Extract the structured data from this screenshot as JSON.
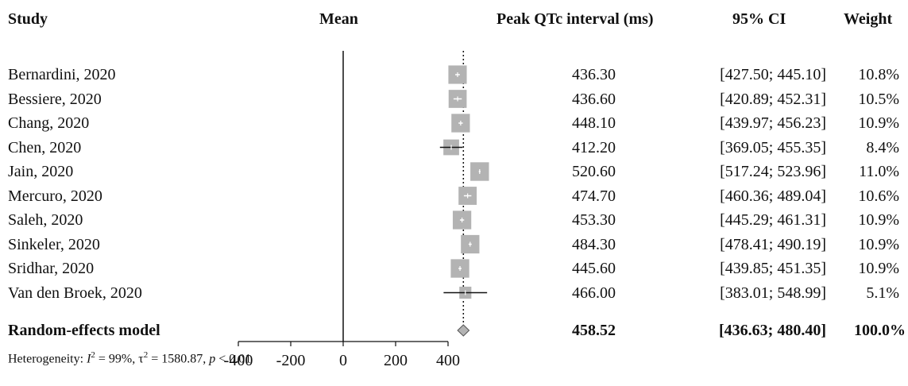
{
  "headers": {
    "study": "Study",
    "mean": "Mean",
    "value": "Peak QTc interval (ms)",
    "ci": "95% CI",
    "weight": "Weight"
  },
  "heterogeneity": {
    "prefix": "Heterogeneity: ",
    "i2_symbol": "I",
    "i2_sup": "2",
    "i2_value": " = 99%, ",
    "tau_symbol": "τ",
    "tau_sup": "2",
    "tau_value": " = 1580.87, ",
    "p_symbol": "p",
    "p_value": " < 0.01"
  },
  "chart_data": {
    "type": "forest",
    "title": "",
    "xlabel": "",
    "xlim": [
      -400,
      500
    ],
    "xticks": [
      -400,
      -200,
      0,
      200,
      400
    ],
    "xtick_labels": [
      "-400",
      "-200",
      "0",
      "200",
      "400"
    ],
    "null_line": 0,
    "pooled_line": 458.52,
    "studies": [
      {
        "name": "Bernardini, 2020",
        "mean": 436.3,
        "mean_label": "436.30",
        "lower": 427.5,
        "upper": 445.1,
        "ci_label": "[427.50; 445.10]",
        "weight": 10.8,
        "weight_label": "10.8%"
      },
      {
        "name": "Bessiere, 2020",
        "mean": 436.6,
        "mean_label": "436.60",
        "lower": 420.89,
        "upper": 452.31,
        "ci_label": "[420.89; 452.31]",
        "weight": 10.5,
        "weight_label": "10.5%"
      },
      {
        "name": "Chang, 2020",
        "mean": 448.1,
        "mean_label": "448.10",
        "lower": 439.97,
        "upper": 456.23,
        "ci_label": "[439.97; 456.23]",
        "weight": 10.9,
        "weight_label": "10.9%"
      },
      {
        "name": "Chen, 2020",
        "mean": 412.2,
        "mean_label": "412.20",
        "lower": 369.05,
        "upper": 455.35,
        "ci_label": "[369.05; 455.35]",
        "weight": 8.4,
        "weight_label": "8.4%"
      },
      {
        "name": "Jain, 2020",
        "mean": 520.6,
        "mean_label": "520.60",
        "lower": 517.24,
        "upper": 523.96,
        "ci_label": "[517.24; 523.96]",
        "weight": 11.0,
        "weight_label": "11.0%"
      },
      {
        "name": "Mercuro, 2020",
        "mean": 474.7,
        "mean_label": "474.70",
        "lower": 460.36,
        "upper": 489.04,
        "ci_label": "[460.36; 489.04]",
        "weight": 10.6,
        "weight_label": "10.6%"
      },
      {
        "name": "Saleh, 2020",
        "mean": 453.3,
        "mean_label": "453.30",
        "lower": 445.29,
        "upper": 461.31,
        "ci_label": "[445.29; 461.31]",
        "weight": 10.9,
        "weight_label": "10.9%"
      },
      {
        "name": "Sinkeler, 2020",
        "mean": 484.3,
        "mean_label": "484.30",
        "lower": 478.41,
        "upper": 490.19,
        "ci_label": "[478.41; 490.19]",
        "weight": 10.9,
        "weight_label": "10.9%"
      },
      {
        "name": "Sridhar, 2020",
        "mean": 445.6,
        "mean_label": "445.60",
        "lower": 439.85,
        "upper": 451.35,
        "ci_label": "[439.85; 451.35]",
        "weight": 10.9,
        "weight_label": "10.9%"
      },
      {
        "name": "Van den Broek, 2020",
        "mean": 466.0,
        "mean_label": "466.00",
        "lower": 383.01,
        "upper": 548.99,
        "ci_label": "[383.01; 548.99]",
        "weight": 5.1,
        "weight_label": "5.1%"
      }
    ],
    "pooled": {
      "name": "Random-effects model",
      "mean": 458.52,
      "mean_label": "458.52",
      "lower": 436.63,
      "upper": 480.4,
      "ci_label": "[436.63; 480.40]",
      "weight_label": "100.0%"
    },
    "colors": {
      "box": "#b3b3b3",
      "box_center": "#ffffff",
      "line": "#111111",
      "diamond": "#b3b3b3",
      "diamond_stroke": "#555555"
    }
  }
}
